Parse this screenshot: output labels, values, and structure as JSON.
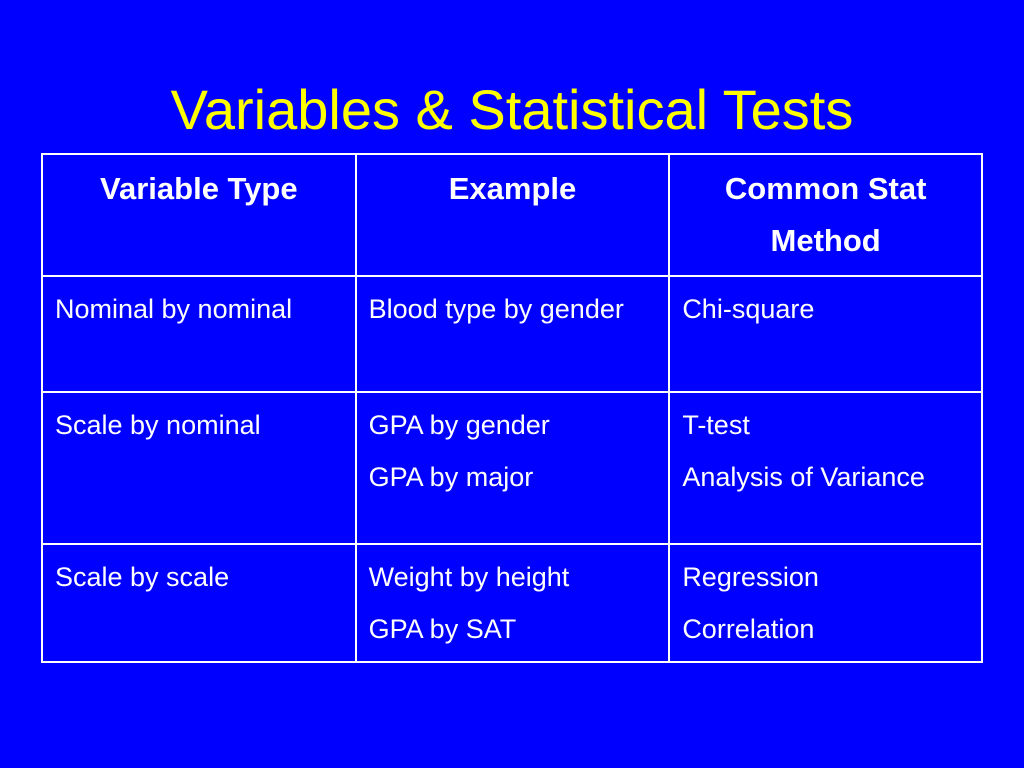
{
  "slide": {
    "title": "Variables & Statistical Tests"
  },
  "table": {
    "headers": [
      "Variable Type",
      "Example",
      "Common Stat Method"
    ],
    "rows": [
      {
        "variable_type": [
          "Nominal by nominal"
        ],
        "example": [
          "Blood type by gender"
        ],
        "method": [
          "Chi-square"
        ]
      },
      {
        "variable_type": [
          "Scale by nominal"
        ],
        "example": [
          "GPA by gender",
          "GPA by major"
        ],
        "method": [
          "T-test",
          "Analysis of Variance"
        ]
      },
      {
        "variable_type": [
          "Scale by scale"
        ],
        "example": [
          "Weight by height",
          "GPA by SAT"
        ],
        "method": [
          "Regression",
          "Correlation"
        ]
      }
    ]
  },
  "colors": {
    "background": "#0000ff",
    "title": "#ffff00",
    "text": "#ffffff",
    "border": "#ffffff"
  }
}
